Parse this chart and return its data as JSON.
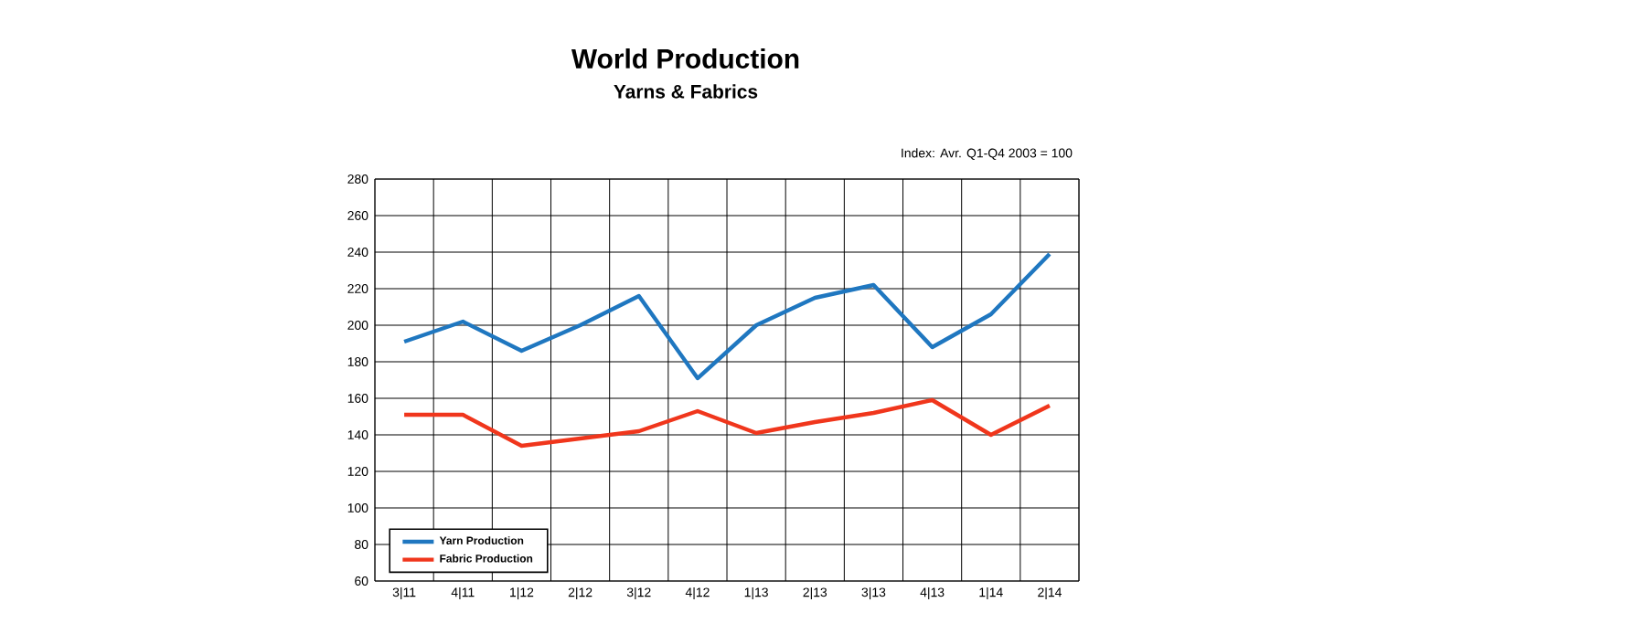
{
  "chart_data": {
    "type": "line",
    "title": "World Production",
    "subtitle": "Yarns & Fabrics",
    "annotations": [
      "Index: Avr. Q1-Q4 2003 = 100"
    ],
    "categories": [
      "3|11",
      "4|11",
      "1|12",
      "2|12",
      "3|12",
      "4|12",
      "1|13",
      "2|13",
      "3|13",
      "4|13",
      "1|14",
      "2|14"
    ],
    "series": [
      {
        "name": "Yarn Production",
        "color": "#1f77c0",
        "values": [
          191,
          202,
          186,
          200,
          216,
          171,
          200,
          215,
          222,
          188,
          206,
          239
        ]
      },
      {
        "name": "Fabric Production",
        "color": "#f0361c",
        "values": [
          151,
          151,
          134,
          138,
          142,
          153,
          141,
          147,
          152,
          159,
          140,
          156
        ]
      }
    ],
    "ylim": [
      60,
      280
    ],
    "yticks": [
      60,
      80,
      100,
      120,
      140,
      160,
      180,
      200,
      220,
      240,
      260,
      280
    ],
    "grid": true,
    "legend": "bottom left",
    "marker": "none",
    "line_style": "solid"
  }
}
